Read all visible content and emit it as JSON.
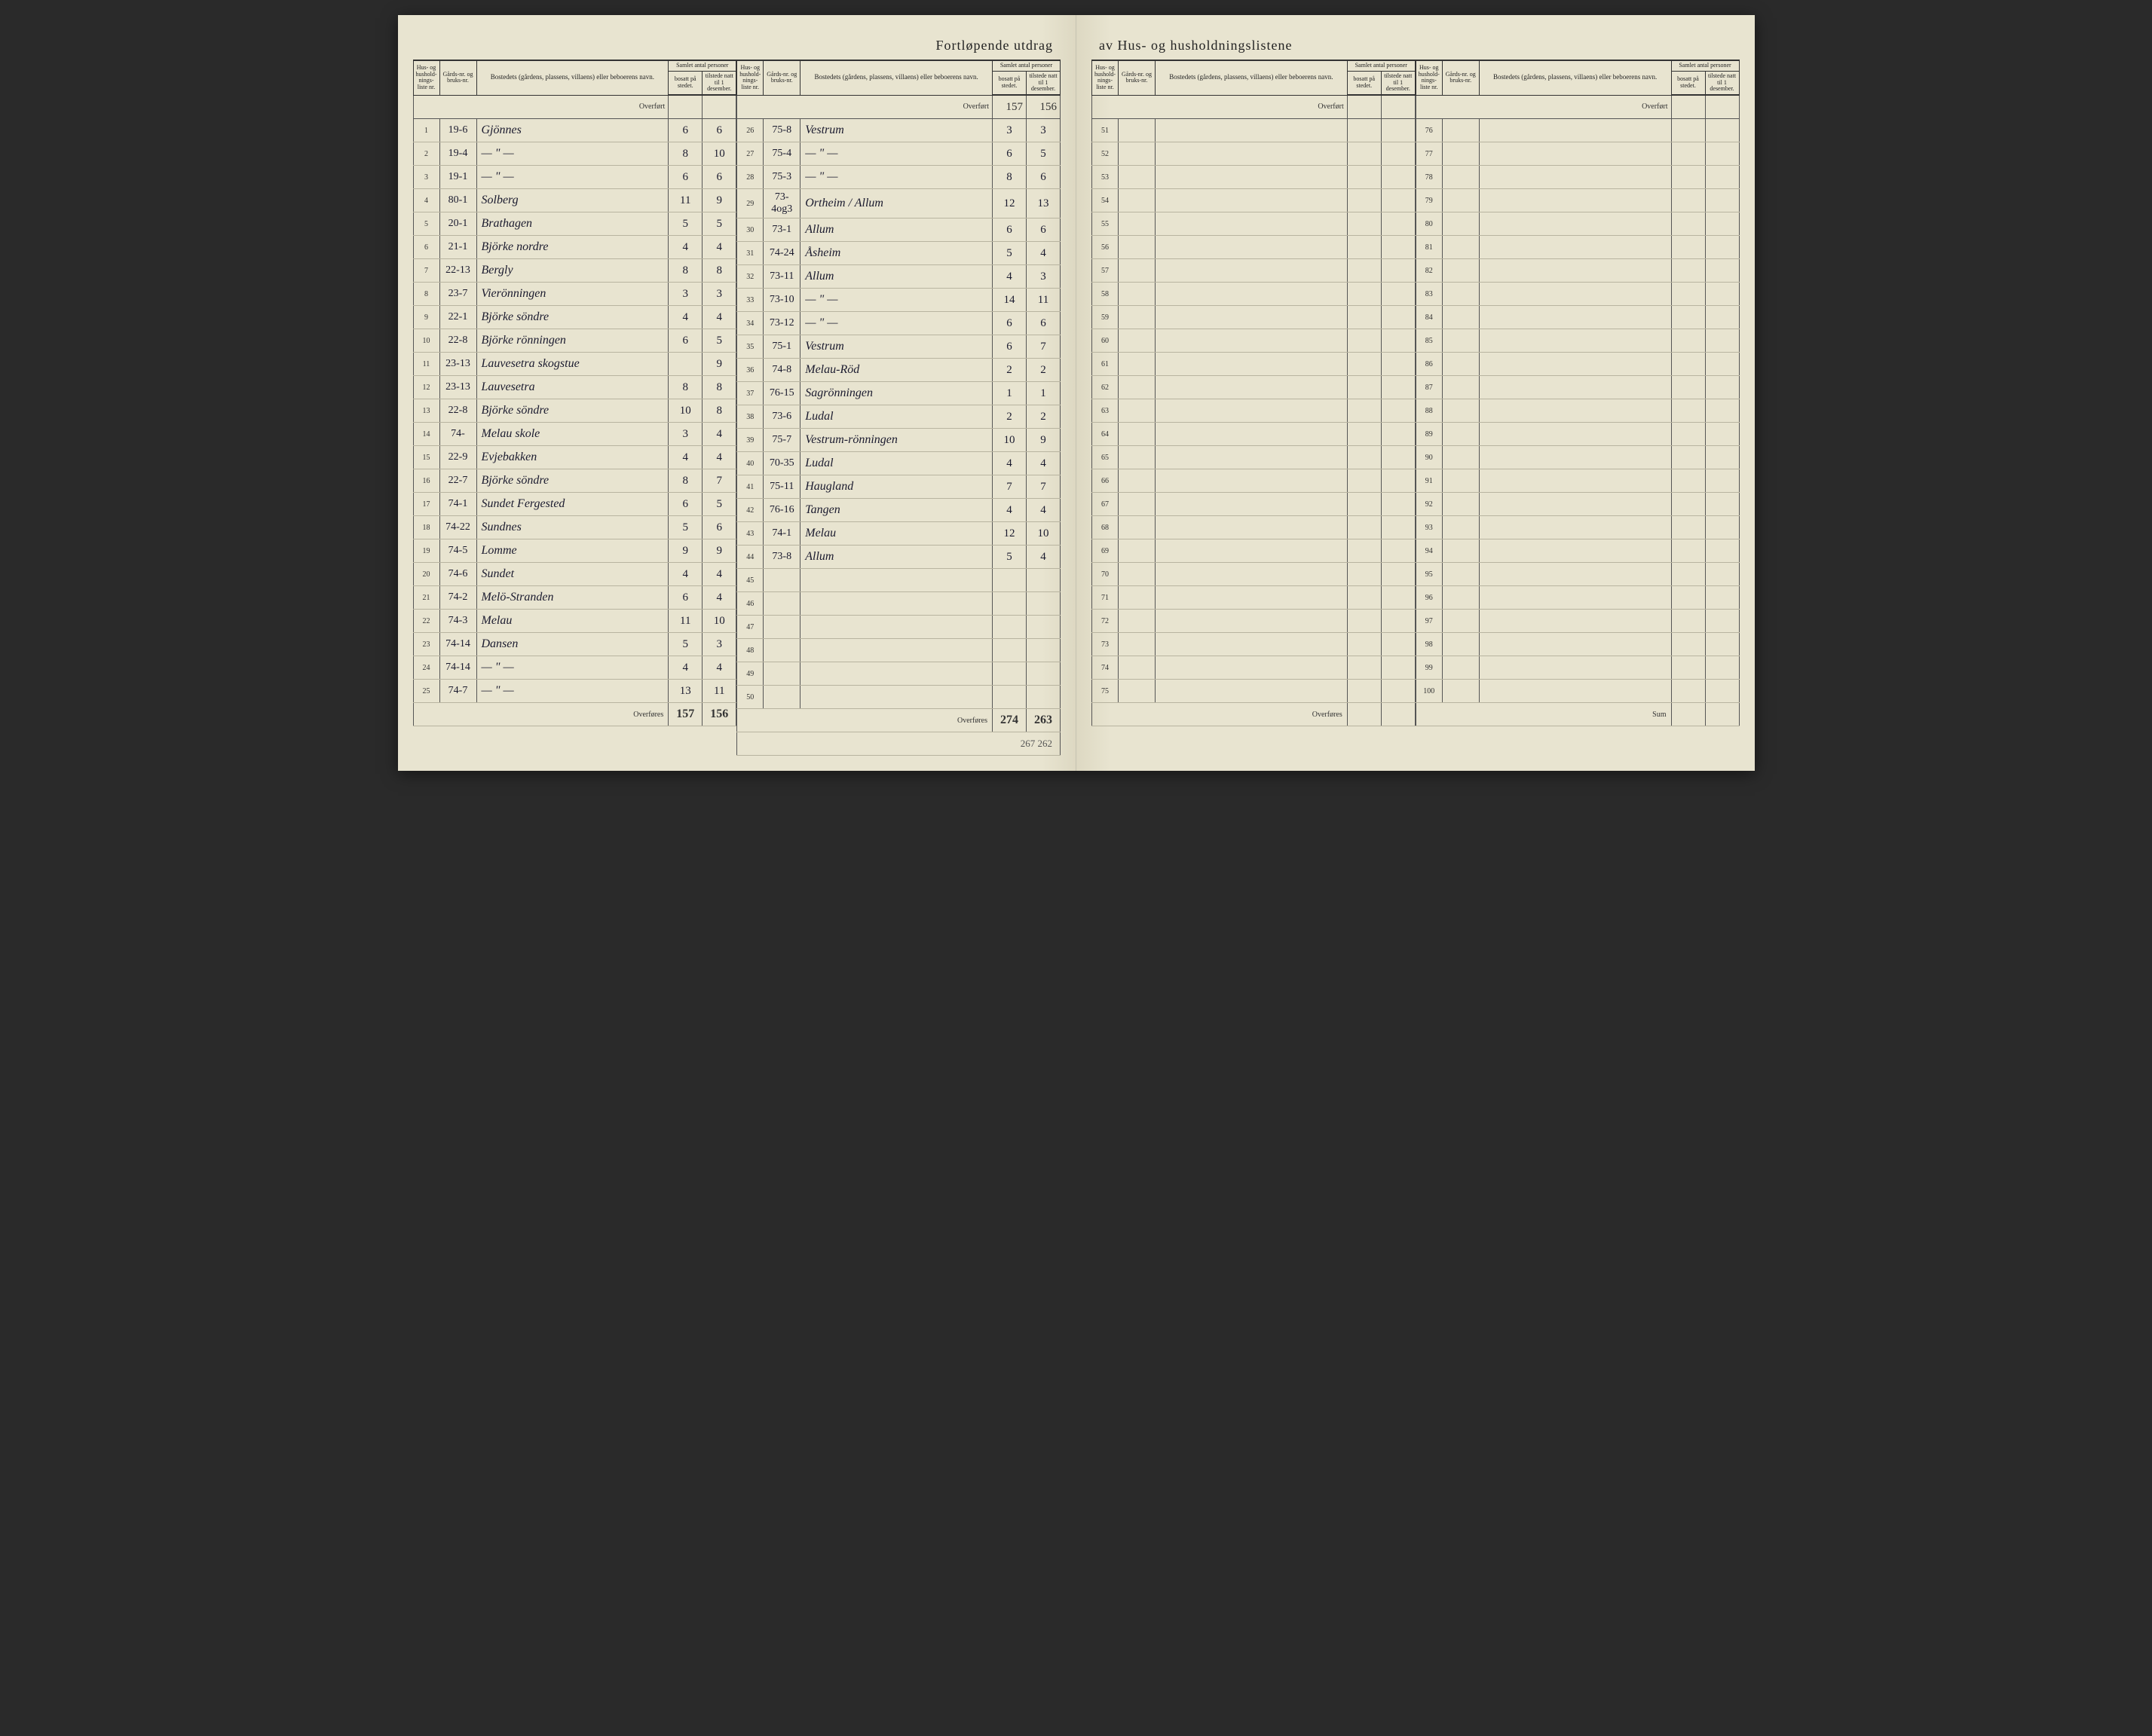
{
  "title_left": "Fortløpende utdrag",
  "title_right": "av Hus- og husholdningslistene",
  "headers": {
    "h1": "Hus- og hushold-nings-liste nr.",
    "h2": "Gårds-nr. og bruks-nr.",
    "h3": "Bostedets (gårdens, plassens, villaens) eller beboerens navn.",
    "h4_group": "Samlet antal personer",
    "h4a": "bosatt på stedet.",
    "h4b": "tilstede natt til 1 desember."
  },
  "overfort_label": "Overført",
  "overfores_label": "Overføres",
  "sum_label": "Sum",
  "left": {
    "colA": {
      "overfort": {
        "b": "",
        "t": ""
      },
      "rows": [
        {
          "n": "1",
          "g": "19-6",
          "name": "Gjönnes",
          "b": "6",
          "t": "6"
        },
        {
          "n": "2",
          "g": "19-4",
          "name": "— \" —",
          "b": "8",
          "t": "10"
        },
        {
          "n": "3",
          "g": "19-1",
          "name": "— \" —",
          "b": "6",
          "t": "6"
        },
        {
          "n": "4",
          "g": "80-1",
          "name": "Solberg",
          "b": "11",
          "t": "9"
        },
        {
          "n": "5",
          "g": "20-1",
          "name": "Brathagen",
          "b": "5",
          "t": "5"
        },
        {
          "n": "6",
          "g": "21-1",
          "name": "Björke nordre",
          "b": "4",
          "t": "4"
        },
        {
          "n": "7",
          "g": "22-13",
          "name": "Bergly",
          "b": "8",
          "t": "8"
        },
        {
          "n": "8",
          "g": "23-7",
          "name": "Vierönningen",
          "b": "3",
          "t": "3"
        },
        {
          "n": "9",
          "g": "22-1",
          "name": "Björke söndre",
          "b": "4",
          "t": "4"
        },
        {
          "n": "10",
          "g": "22-8",
          "name": "Björke rönningen",
          "b": "6",
          "t": "5"
        },
        {
          "n": "11",
          "g": "23-13",
          "name": "Lauvesetra skogstue",
          "b": "",
          "t": "9"
        },
        {
          "n": "12",
          "g": "23-13",
          "name": "Lauvesetra",
          "b": "8",
          "t": "8"
        },
        {
          "n": "13",
          "g": "22-8",
          "name": "Björke söndre",
          "b": "10",
          "t": "8"
        },
        {
          "n": "14",
          "g": "74-",
          "name": "Melau skole",
          "b": "3",
          "t": "4"
        },
        {
          "n": "15",
          "g": "22-9",
          "name": "Evjebakken",
          "b": "4",
          "t": "4"
        },
        {
          "n": "16",
          "g": "22-7",
          "name": "Björke söndre",
          "b": "8",
          "t": "7"
        },
        {
          "n": "17",
          "g": "74-1",
          "name": "Sundet Fergested",
          "b": "6",
          "t": "5"
        },
        {
          "n": "18",
          "g": "74-22",
          "name": "Sundnes",
          "b": "5",
          "t": "6"
        },
        {
          "n": "19",
          "g": "74-5",
          "name": "Lomme",
          "b": "9",
          "t": "9"
        },
        {
          "n": "20",
          "g": "74-6",
          "name": "Sundet",
          "b": "4",
          "t": "4"
        },
        {
          "n": "21",
          "g": "74-2",
          "name": "Melö-Stranden",
          "b": "6",
          "t": "4"
        },
        {
          "n": "22",
          "g": "74-3",
          "name": "Melau",
          "b": "11",
          "t": "10"
        },
        {
          "n": "23",
          "g": "74-14",
          "name": "Dansen",
          "b": "5",
          "t": "3"
        },
        {
          "n": "24",
          "g": "74-14",
          "name": "— \" —",
          "b": "4",
          "t": "4"
        },
        {
          "n": "25",
          "g": "74-7",
          "name": "— \" —",
          "b": "13",
          "t": "11"
        }
      ],
      "overfores": {
        "b": "157",
        "t": "156"
      }
    },
    "colB": {
      "overfort": {
        "b": "157",
        "t": "156"
      },
      "rows": [
        {
          "n": "26",
          "g": "75-8",
          "name": "Vestrum",
          "b": "3",
          "t": "3"
        },
        {
          "n": "27",
          "g": "75-4",
          "name": "— \" —",
          "b": "6",
          "t": "5"
        },
        {
          "n": "28",
          "g": "75-3",
          "name": "— \" —",
          "b": "8",
          "t": "6"
        },
        {
          "n": "29",
          "g": "73-4og3",
          "name": "Ortheim / Allum",
          "b": "12",
          "t": "13"
        },
        {
          "n": "30",
          "g": "73-1",
          "name": "Allum",
          "b": "6",
          "t": "6"
        },
        {
          "n": "31",
          "g": "74-24",
          "name": "Åsheim",
          "b": "5",
          "t": "4"
        },
        {
          "n": "32",
          "g": "73-11",
          "name": "Allum",
          "b": "4",
          "t": "3"
        },
        {
          "n": "33",
          "g": "73-10",
          "name": "— \" —",
          "b": "14",
          "t": "11"
        },
        {
          "n": "34",
          "g": "73-12",
          "name": "— \" —",
          "b": "6",
          "t": "6"
        },
        {
          "n": "35",
          "g": "75-1",
          "name": "Vestrum",
          "b": "6",
          "t": "7"
        },
        {
          "n": "36",
          "g": "74-8",
          "name": "Melau-Röd",
          "b": "2",
          "t": "2"
        },
        {
          "n": "37",
          "g": "76-15",
          "name": "Sagrönningen",
          "b": "1",
          "t": "1"
        },
        {
          "n": "38",
          "g": "73-6",
          "name": "Ludal",
          "b": "2",
          "t": "2"
        },
        {
          "n": "39",
          "g": "75-7",
          "name": "Vestrum-rönningen",
          "b": "10",
          "t": "9"
        },
        {
          "n": "40",
          "g": "70-35",
          "name": "Ludal",
          "b": "4",
          "t": "4"
        },
        {
          "n": "41",
          "g": "75-11",
          "name": "Haugland",
          "b": "7",
          "t": "7"
        },
        {
          "n": "42",
          "g": "76-16",
          "name": "Tangen",
          "b": "4",
          "t": "4"
        },
        {
          "n": "43",
          "g": "74-1",
          "name": "Melau",
          "b": "12",
          "t": "10"
        },
        {
          "n": "44",
          "g": "73-8",
          "name": "Allum",
          "b": "5",
          "t": "4"
        },
        {
          "n": "45",
          "g": "",
          "name": "",
          "b": "",
          "t": ""
        },
        {
          "n": "46",
          "g": "",
          "name": "",
          "b": "",
          "t": ""
        },
        {
          "n": "47",
          "g": "",
          "name": "",
          "b": "",
          "t": ""
        },
        {
          "n": "48",
          "g": "",
          "name": "",
          "b": "",
          "t": ""
        },
        {
          "n": "49",
          "g": "",
          "name": "",
          "b": "",
          "t": ""
        },
        {
          "n": "50",
          "g": "",
          "name": "",
          "b": "",
          "t": ""
        }
      ],
      "overfores": {
        "b": "274",
        "t": "263"
      },
      "annotation": "267 262"
    }
  },
  "right": {
    "colC": {
      "rows": [
        {
          "n": "51"
        },
        {
          "n": "52"
        },
        {
          "n": "53"
        },
        {
          "n": "54"
        },
        {
          "n": "55"
        },
        {
          "n": "56"
        },
        {
          "n": "57"
        },
        {
          "n": "58"
        },
        {
          "n": "59"
        },
        {
          "n": "60"
        },
        {
          "n": "61"
        },
        {
          "n": "62"
        },
        {
          "n": "63"
        },
        {
          "n": "64"
        },
        {
          "n": "65"
        },
        {
          "n": "66"
        },
        {
          "n": "67"
        },
        {
          "n": "68"
        },
        {
          "n": "69"
        },
        {
          "n": "70"
        },
        {
          "n": "71"
        },
        {
          "n": "72"
        },
        {
          "n": "73"
        },
        {
          "n": "74"
        },
        {
          "n": "75"
        }
      ]
    },
    "colD": {
      "rows": [
        {
          "n": "76"
        },
        {
          "n": "77"
        },
        {
          "n": "78"
        },
        {
          "n": "79"
        },
        {
          "n": "80"
        },
        {
          "n": "81"
        },
        {
          "n": "82"
        },
        {
          "n": "83"
        },
        {
          "n": "84"
        },
        {
          "n": "85"
        },
        {
          "n": "86"
        },
        {
          "n": "87"
        },
        {
          "n": "88"
        },
        {
          "n": "89"
        },
        {
          "n": "90"
        },
        {
          "n": "91"
        },
        {
          "n": "92"
        },
        {
          "n": "93"
        },
        {
          "n": "94"
        },
        {
          "n": "95"
        },
        {
          "n": "96"
        },
        {
          "n": "97"
        },
        {
          "n": "98"
        },
        {
          "n": "99"
        },
        {
          "n": "100"
        }
      ]
    }
  }
}
